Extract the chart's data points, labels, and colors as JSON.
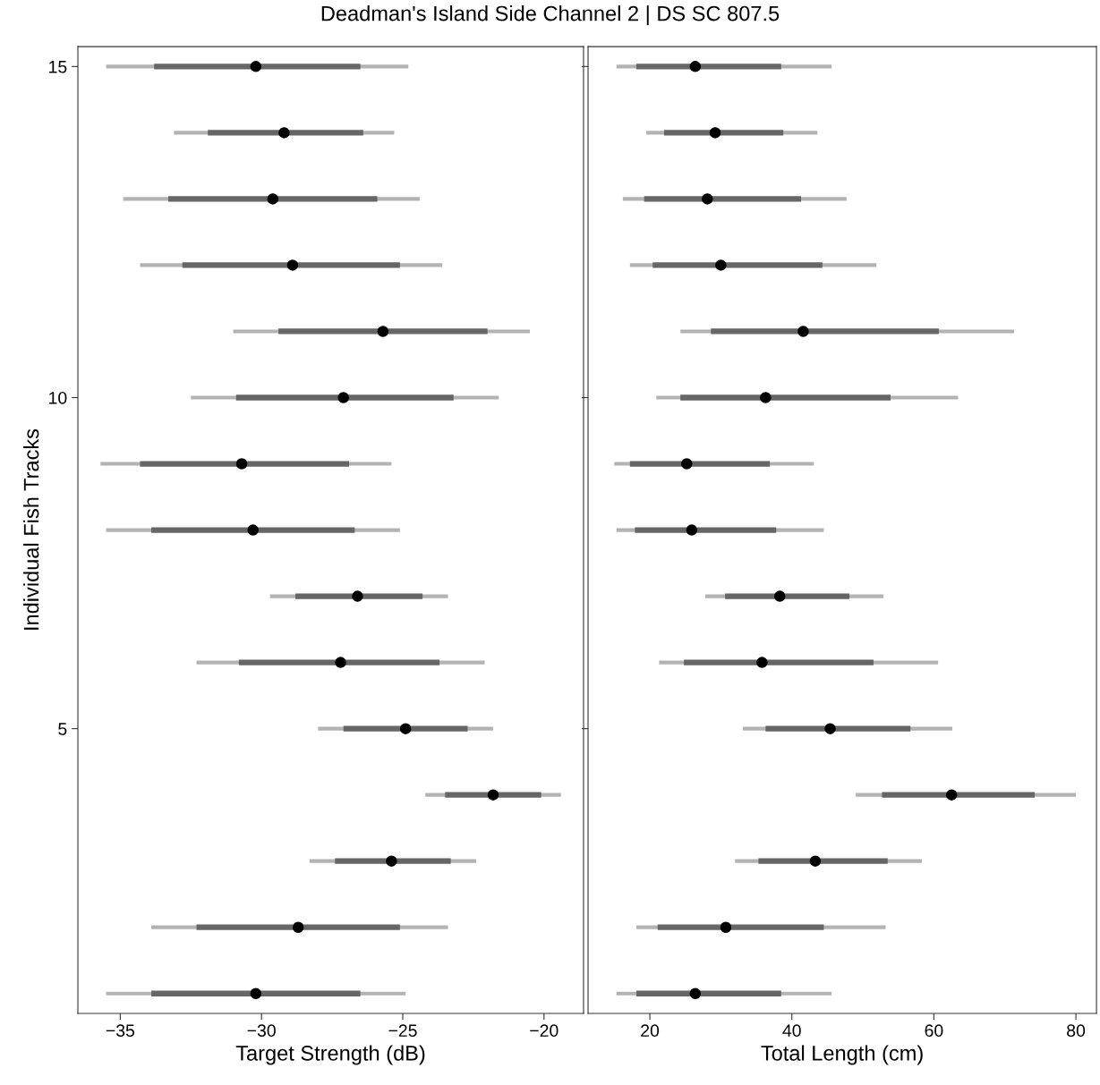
{
  "chart_data": [
    {
      "type": "box",
      "orientation": "horizontal",
      "title": "Deadman's Island Side Channel 2 | DS SC 807.5",
      "xlabel": "Target Strength (dB)",
      "ylabel": "Individual Fish Tracks",
      "categories": [
        "15",
        null,
        null,
        null,
        null,
        "10",
        null,
        null,
        null,
        null,
        "5",
        null,
        null,
        null,
        null
      ],
      "series": [
        {
          "color": "#666666",
          "boxes": [
            {
              "low": -35.5,
              "q1": -33.8,
              "median": -30.2,
              "q3": -26.5,
              "high": -24.8
            },
            {
              "low": -33.1,
              "q1": -31.9,
              "median": -29.2,
              "q3": -26.4,
              "high": -25.3
            },
            {
              "low": -34.9,
              "q1": -33.3,
              "median": -29.6,
              "q3": -25.9,
              "high": -24.4
            },
            {
              "low": -34.3,
              "q1": -32.8,
              "median": -28.9,
              "q3": -25.1,
              "high": -23.6
            },
            {
              "low": -31.0,
              "q1": -29.4,
              "median": -25.7,
              "q3": -22.0,
              "high": -20.5
            },
            {
              "low": -32.5,
              "q1": -30.9,
              "median": -27.1,
              "q3": -23.2,
              "high": -21.6
            },
            {
              "low": -35.7,
              "q1": -34.3,
              "median": -30.7,
              "q3": -26.9,
              "high": -25.4
            },
            {
              "low": -35.5,
              "q1": -33.9,
              "median": -30.3,
              "q3": -26.7,
              "high": -25.1
            },
            {
              "low": -29.7,
              "q1": -28.8,
              "median": -26.6,
              "q3": -24.3,
              "high": -23.4
            },
            {
              "low": -32.3,
              "q1": -30.8,
              "median": -27.2,
              "q3": -23.7,
              "high": -22.1
            },
            {
              "low": -28.0,
              "q1": -27.1,
              "median": -24.9,
              "q3": -22.7,
              "high": -21.8
            },
            {
              "low": -24.2,
              "q1": -23.5,
              "median": -21.8,
              "q3": -20.1,
              "high": -19.4
            },
            {
              "low": -28.3,
              "q1": -27.4,
              "median": -25.4,
              "q3": -23.3,
              "high": -22.4
            },
            {
              "low": -33.9,
              "q1": -32.3,
              "median": -28.7,
              "q3": -25.1,
              "high": -23.4
            },
            {
              "low": -35.5,
              "q1": -33.9,
              "median": -30.2,
              "q3": -26.5,
              "high": -24.9
            }
          ]
        }
      ],
      "xlim": [
        -36.5,
        -18.6
      ],
      "xticks": [
        {
          "value": -35,
          "label": "−35"
        },
        {
          "value": -30,
          "label": "−30"
        },
        {
          "value": -25,
          "label": "−25"
        },
        {
          "value": -20,
          "label": "−20"
        }
      ]
    },
    {
      "type": "box",
      "orientation": "horizontal",
      "xlabel": "Total Length (cm)",
      "tick_labels": "x",
      "categories": [
        "15",
        null,
        null,
        null,
        null,
        "10",
        null,
        null,
        null,
        null,
        "5",
        null,
        null,
        null,
        null
      ],
      "series": [
        {
          "color": "#666666",
          "boxes": [
            {
              "low": 15.3,
              "q1": 18.1,
              "median": 26.4,
              "q3": 38.5,
              "high": 45.6
            },
            {
              "low": 19.5,
              "q1": 22.0,
              "median": 29.2,
              "q3": 38.8,
              "high": 43.6
            },
            {
              "low": 16.2,
              "q1": 19.2,
              "median": 28.1,
              "q3": 41.3,
              "high": 47.7
            },
            {
              "low": 17.2,
              "q1": 20.4,
              "median": 30.0,
              "q3": 44.3,
              "high": 51.9
            },
            {
              "low": 24.3,
              "q1": 28.6,
              "median": 41.6,
              "q3": 60.7,
              "high": 71.3
            },
            {
              "low": 20.9,
              "q1": 24.3,
              "median": 36.3,
              "q3": 53.9,
              "high": 63.4
            },
            {
              "low": 15.0,
              "q1": 17.2,
              "median": 25.2,
              "q3": 36.9,
              "high": 43.1
            },
            {
              "low": 15.3,
              "q1": 17.9,
              "median": 25.9,
              "q3": 37.8,
              "high": 44.5
            },
            {
              "low": 27.8,
              "q1": 30.6,
              "median": 38.3,
              "q3": 48.1,
              "high": 52.9
            },
            {
              "low": 21.3,
              "q1": 24.8,
              "median": 35.8,
              "q3": 51.5,
              "high": 60.6
            },
            {
              "low": 33.1,
              "q1": 36.3,
              "median": 45.4,
              "q3": 56.7,
              "high": 62.6
            },
            {
              "low": 49.0,
              "q1": 52.7,
              "median": 62.5,
              "q3": 74.2,
              "high": 80.0
            },
            {
              "low": 32.0,
              "q1": 35.3,
              "median": 43.3,
              "q3": 53.5,
              "high": 58.3
            },
            {
              "low": 18.1,
              "q1": 21.1,
              "median": 30.7,
              "q3": 44.5,
              "high": 53.2
            },
            {
              "low": 15.3,
              "q1": 18.1,
              "median": 26.4,
              "q3": 38.5,
              "high": 45.6
            }
          ]
        }
      ],
      "xlim": [
        11.3,
        82.9
      ],
      "xticks": [
        20,
        40,
        60,
        80
      ]
    }
  ]
}
